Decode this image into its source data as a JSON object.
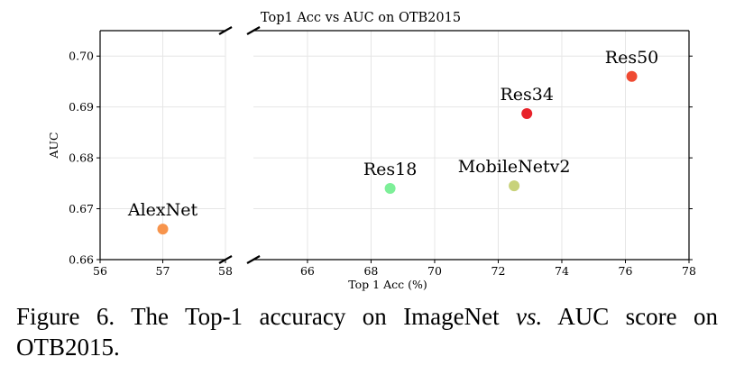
{
  "chart_data": {
    "type": "scatter",
    "title": "Top1 Acc vs AUC on OTB2015",
    "xlabel": "Top 1 Acc (%)",
    "ylabel": "AUC",
    "broken_x_axis": true,
    "x_segments": [
      {
        "xlim": [
          56,
          58
        ],
        "xticks": [
          56,
          57,
          58
        ]
      },
      {
        "xlim": [
          64.3,
          78
        ],
        "xticks": [
          66,
          68,
          70,
          72,
          74,
          76,
          78
        ]
      }
    ],
    "ylim": [
      0.66,
      0.705
    ],
    "yticks": [
      0.66,
      0.67,
      0.68,
      0.69,
      0.7
    ],
    "ytick_labels": [
      "0.66",
      "0.67",
      "0.68",
      "0.69",
      "0.70"
    ],
    "grid": true,
    "points": [
      {
        "label": "AlexNet",
        "x": 57.0,
        "y": 0.666,
        "color": "#f7944c"
      },
      {
        "label": "Res18",
        "x": 68.6,
        "y": 0.674,
        "color": "#7def98"
      },
      {
        "label": "MobileNetv2",
        "x": 72.5,
        "y": 0.6745,
        "color": "#c8d27a"
      },
      {
        "label": "Res34",
        "x": 72.9,
        "y": 0.6887,
        "color": "#e8222a"
      },
      {
        "label": "Res50",
        "x": 76.2,
        "y": 0.696,
        "color": "#ef4a32"
      }
    ]
  },
  "caption": {
    "prefix": "Figure 6. The Top-1 accuracy on ImageNet ",
    "italic": "vs.",
    "suffix": "  AUC score on OTB2015."
  }
}
